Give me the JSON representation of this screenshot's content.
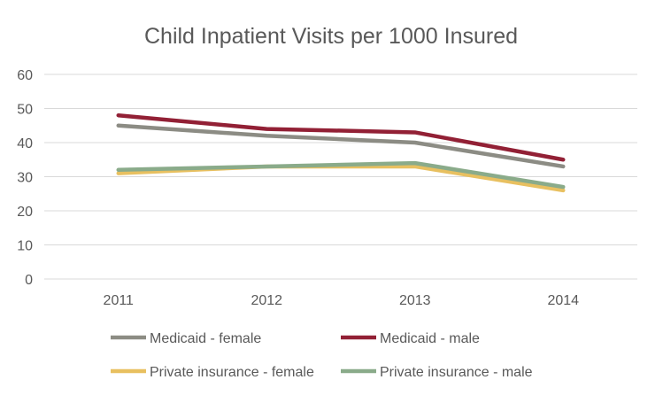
{
  "chart_data": {
    "type": "line",
    "title": "Child Inpatient Visits per 1000 Insured",
    "xlabel": "",
    "ylabel": "",
    "categories": [
      "2011",
      "2012",
      "2013",
      "2014"
    ],
    "ylim": [
      0,
      60
    ],
    "yticks": [
      "0",
      "10",
      "20",
      "30",
      "40",
      "50",
      "60"
    ],
    "grid": true,
    "legend_placement": "bottom",
    "series": [
      {
        "name": "Medicaid - female",
        "color": "#8c8c84",
        "values": [
          45,
          42,
          40,
          33
        ]
      },
      {
        "name": "Medicaid - male",
        "color": "#922035",
        "values": [
          48,
          44,
          43,
          35
        ]
      },
      {
        "name": "Private insurance - female",
        "color": "#e8c060",
        "values": [
          31,
          33,
          33,
          26
        ]
      },
      {
        "name": "Private insurance - male",
        "color": "#8aab8a",
        "values": [
          32,
          33,
          34,
          27
        ]
      }
    ]
  }
}
